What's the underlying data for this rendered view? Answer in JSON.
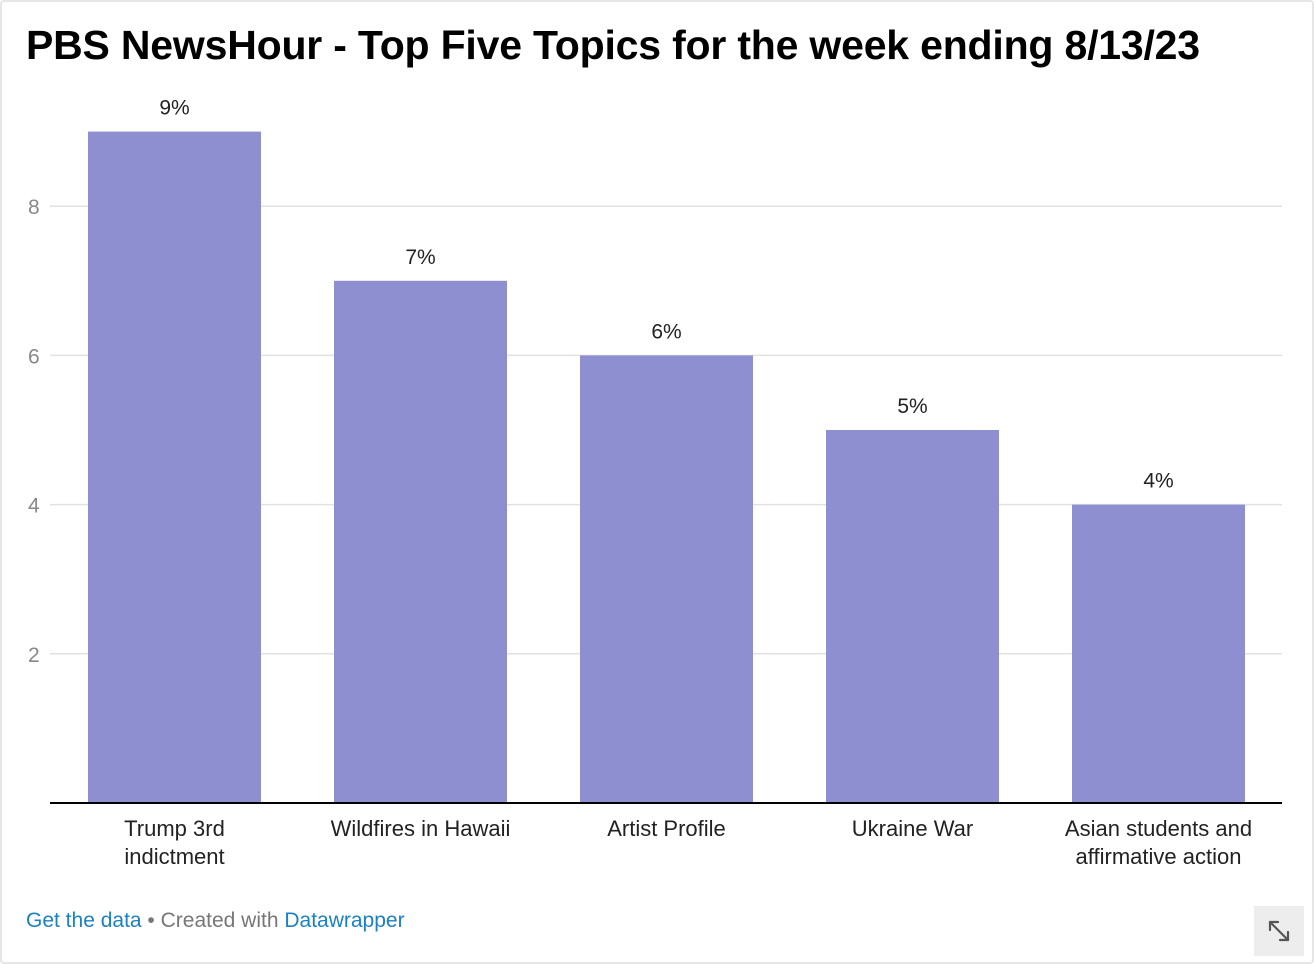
{
  "title": "PBS NewsHour - Top Five Topics for the week ending 8/13/23",
  "footer": {
    "get_data": "Get the data",
    "separator": " • ",
    "created_with": "Created with",
    "tool": "Datawrapper"
  },
  "icons": {
    "expand": "expand-diagonal-arrows-icon"
  },
  "colors": {
    "bar": "#8e8fd0",
    "grid": "#e2e2e2",
    "axis": "#000000",
    "tick_label": "#888888",
    "link": "#1b81c4"
  },
  "chart_data": {
    "type": "bar",
    "categories": [
      [
        "Trump 3rd",
        "indictment"
      ],
      [
        "Wildfires in Hawaii"
      ],
      [
        "Artist Profile"
      ],
      [
        "Ukraine War"
      ],
      [
        "Asian students and",
        "affirmative action"
      ]
    ],
    "values": [
      9,
      7,
      6,
      5,
      4
    ],
    "value_labels": [
      "9%",
      "7%",
      "6%",
      "5%",
      "4%"
    ],
    "yticks": [
      2,
      4,
      6,
      8
    ],
    "ylim": [
      0,
      10
    ],
    "grid": true,
    "legend": false
  }
}
